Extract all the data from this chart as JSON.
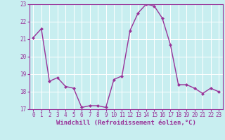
{
  "x": [
    0,
    1,
    2,
    3,
    4,
    5,
    6,
    7,
    8,
    9,
    10,
    11,
    12,
    13,
    14,
    15,
    16,
    17,
    18,
    19,
    20,
    21,
    22,
    23
  ],
  "y": [
    21.1,
    21.6,
    18.6,
    18.8,
    18.3,
    18.2,
    17.1,
    17.2,
    17.2,
    17.1,
    18.7,
    18.9,
    21.5,
    22.5,
    23.0,
    22.9,
    22.2,
    20.7,
    18.4,
    18.4,
    18.2,
    17.9,
    18.2,
    18.0
  ],
  "line_color": "#993399",
  "marker": "D",
  "marker_size": 2.0,
  "line_width": 1.0,
  "background_color": "#c8eef0",
  "grid_color": "#ffffff",
  "xlabel": "Windchill (Refroidissement éolien,°C)",
  "xlabel_color": "#993399",
  "tick_color": "#993399",
  "ylim": [
    17,
    23
  ],
  "xlim_min": -0.5,
  "xlim_max": 23.5,
  "yticks": [
    17,
    18,
    19,
    20,
    21,
    22,
    23
  ],
  "xticks": [
    0,
    1,
    2,
    3,
    4,
    5,
    6,
    7,
    8,
    9,
    10,
    11,
    12,
    13,
    14,
    15,
    16,
    17,
    18,
    19,
    20,
    21,
    22,
    23
  ],
  "spine_color": "#993399",
  "tick_fontsize": 5.5,
  "xlabel_fontsize": 6.5,
  "xlabel_fontweight": "bold"
}
